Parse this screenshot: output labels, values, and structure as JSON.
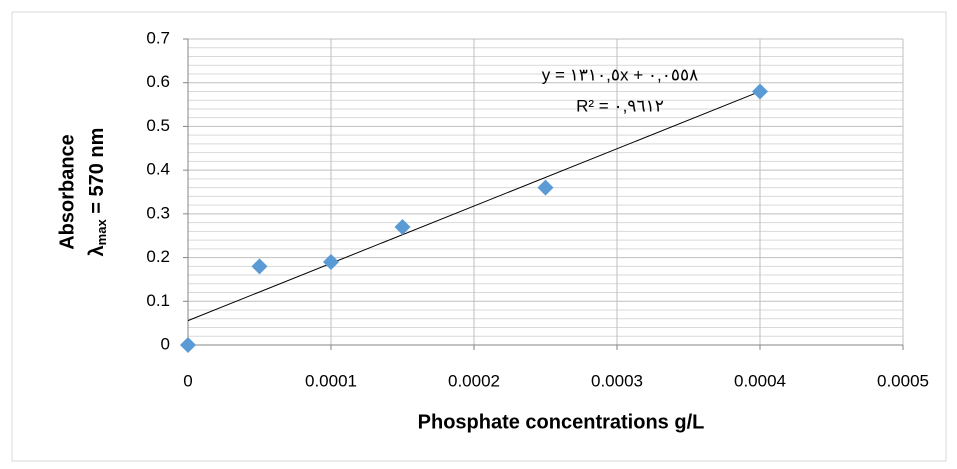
{
  "chart_data": {
    "type": "scatter",
    "xlabel": "Phosphate concentrations g/L",
    "ylabel": "Absorbance",
    "ylabel2": {
      "symbol": "λ",
      "subscript": "max",
      "rest": " = 570 nm"
    },
    "x": [
      0,
      5e-05,
      0.0001,
      0.00015,
      0.00025,
      0.0004
    ],
    "values": [
      0,
      0.18,
      0.19,
      0.27,
      0.36,
      0.58
    ],
    "color": "#5b9bd5",
    "xlim": [
      0,
      0.0005
    ],
    "xticks": [
      0,
      0.0001,
      0.0002,
      0.0003,
      0.0004,
      0.0005
    ],
    "ylim": [
      0,
      0.7
    ],
    "yticks": [
      0,
      0.1,
      0.2,
      0.3,
      0.4,
      0.5,
      0.6,
      0.7
    ],
    "grid": true,
    "minor_grid": true,
    "trendline": {
      "slope": 1310.5,
      "intercept": 0.0558,
      "equation": "y = ١٣١٠,٥x + ٠,٠٥٥٨",
      "r2_label": "R² = ٠,٩٦١٢",
      "color": "#000000"
    }
  }
}
